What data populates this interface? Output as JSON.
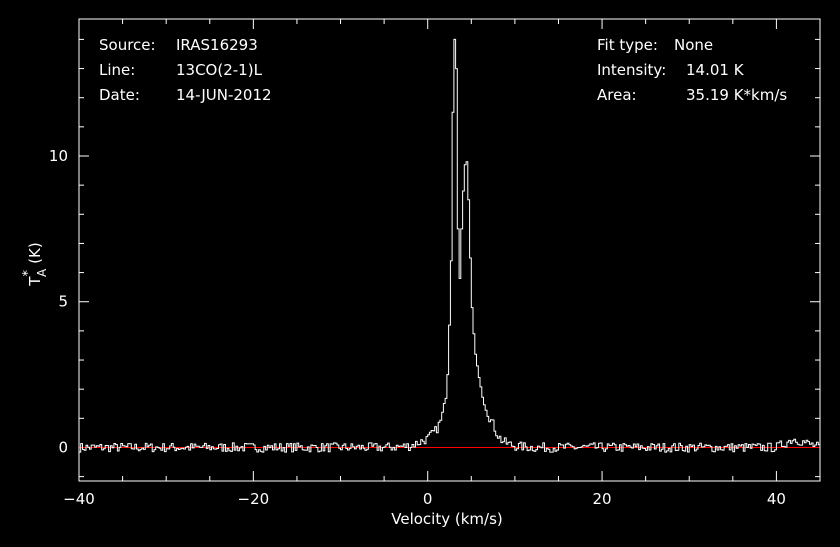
{
  "info_left": {
    "source_label": "Source:",
    "source_value": "IRAS16293",
    "line_label": "Line:",
    "line_value": "13CO(2-1)L",
    "date_label": "Date:",
    "date_value": "14-JUN-2012"
  },
  "info_right": {
    "fit_label": "Fit type:",
    "fit_value": "None",
    "intensity_label": "Intensity:",
    "intensity_value": "14.01 K",
    "area_label": "Area:",
    "area_value": "35.19 K*km/s"
  },
  "colors": {
    "background": "#000000",
    "foreground": "#ffffff",
    "baseline": "#ff0000"
  },
  "chart_data": {
    "type": "line",
    "style": "step",
    "xlabel": "Velocity (km/s)",
    "ylabel": "T",
    "ylabel_sup": "*",
    "ylabel_sub": "A",
    "ylabel_unit": "(K)",
    "xlim": [
      -40,
      45
    ],
    "ylim": [
      -1.15,
      14.7
    ],
    "xticks": [
      -40,
      -20,
      0,
      20,
      40
    ],
    "xtick_labels": [
      "−40",
      "−20",
      "0",
      "20",
      "40"
    ],
    "yticks": [
      0,
      5,
      10
    ],
    "ytick_labels": [
      "0",
      "5",
      "10"
    ],
    "baseline": 0,
    "series": [
      {
        "x": [
          -40,
          -35,
          -30,
          -25,
          -20,
          -15,
          -10,
          -5,
          -2,
          0,
          1,
          1.5,
          2,
          2.3,
          2.5,
          2.7,
          2.9,
          3.1,
          3.3,
          3.5,
          3.7,
          3.9,
          4.1,
          4.3,
          4.5,
          4.7,
          4.9,
          5.1,
          5.3,
          5.5,
          5.7,
          6,
          6.5,
          7,
          7.5,
          8,
          8.5,
          9,
          10,
          12,
          15,
          20,
          25,
          30,
          35,
          40,
          42,
          45
        ],
        "values": [
          0,
          0,
          0,
          0,
          0,
          0,
          0,
          0,
          0.05,
          0.3,
          0.6,
          0.9,
          1.5,
          2.5,
          4.2,
          6.4,
          11.5,
          14.0,
          13.0,
          7.5,
          5.8,
          7.5,
          8.8,
          9.7,
          9.8,
          8.5,
          6.5,
          4.8,
          3.9,
          3.2,
          2.8,
          2.2,
          1.6,
          1.1,
          0.8,
          0.45,
          0.25,
          0.15,
          0.05,
          0,
          0,
          0,
          0,
          0,
          0,
          0,
          0.3,
          0
        ]
      }
    ]
  }
}
